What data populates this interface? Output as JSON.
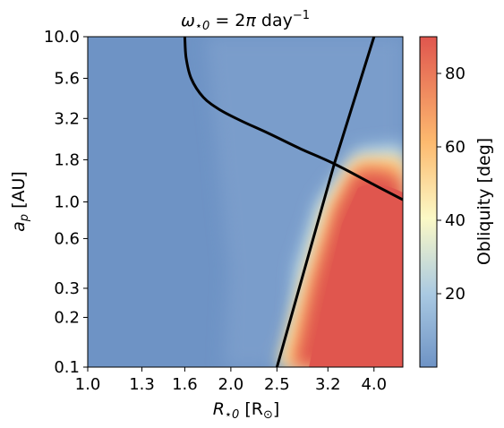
{
  "chart_data": {
    "type": "heatmap",
    "title": "ω⋆0 = 2π day⁻¹",
    "title_parts": {
      "omega": "ω",
      "sub": "⋆0",
      "eq": " = 2",
      "pi": "π",
      "unit": " day",
      "exp": "−1"
    },
    "xlabel": {
      "symbol": "R",
      "sub": "⋆0",
      "unit": " [R",
      "unit_sub": "⊙",
      "close": "]"
    },
    "ylabel": {
      "symbol": "a",
      "sub": "p",
      "unit": " [AU]"
    },
    "x_ticks": [
      "1.0",
      "1.3",
      "1.6",
      "2.0",
      "2.5",
      "3.2",
      "4.0"
    ],
    "x_tick_values": [
      1.0,
      1.3,
      1.6,
      2.0,
      2.5,
      3.2,
      4.0
    ],
    "x_range": [
      1.0,
      4.6
    ],
    "y_ticks": [
      "0.1",
      "0.2",
      "0.3",
      "0.6",
      "1.0",
      "1.8",
      "3.2",
      "5.6",
      "10.0"
    ],
    "y_tick_values": [
      0.1,
      0.2,
      0.3,
      0.6,
      1.0,
      1.8,
      3.2,
      5.6,
      10.0
    ],
    "y_range": [
      0.1,
      10.0
    ],
    "colorbar": {
      "label": "Obliquity [deg]",
      "ticks": [
        "20",
        "40",
        "60",
        "80"
      ],
      "tick_values": [
        20,
        40,
        60,
        80
      ],
      "range": [
        0,
        90
      ],
      "colormap": [
        "#6e93c5",
        "#a9c9e2",
        "#fbf9c6",
        "#fdba6f",
        "#e0564e"
      ]
    },
    "colors": {
      "low": "#6e93c5",
      "high": "#e0564e",
      "line": "#000000"
    },
    "curves": [
      {
        "kind": "decreasing",
        "points": [
          [
            1.6,
            10.0
          ],
          [
            1.61,
            7.5
          ],
          [
            1.65,
            5.6
          ],
          [
            1.75,
            4.3
          ],
          [
            1.9,
            3.6
          ],
          [
            2.1,
            3.1
          ],
          [
            2.4,
            2.6
          ],
          [
            2.8,
            2.1
          ],
          [
            3.3,
            1.7
          ],
          [
            4.0,
            1.27
          ],
          [
            4.6,
            1.03
          ]
        ]
      },
      {
        "kind": "increasing",
        "points": [
          [
            2.5,
            0.1
          ],
          [
            3.3,
            1.7
          ],
          [
            4.0,
            10.0
          ]
        ]
      }
    ]
  }
}
